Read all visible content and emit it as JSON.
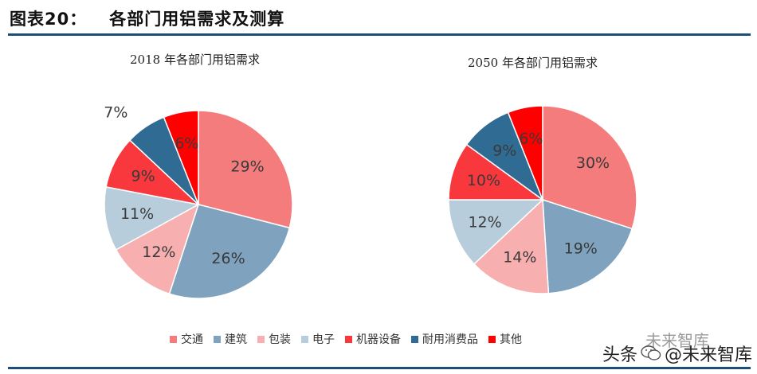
{
  "figure": {
    "label": "图表20：",
    "title": "各部门用铝需求及测算"
  },
  "colors": {
    "交通": "#F47C7C",
    "建筑": "#7FA3BF",
    "包装": "#F8AFAF",
    "电子": "#B8CDDC",
    "机器设备": "#F8383C",
    "耐用消费品": "#2F6B92",
    "其他": "#FF0000",
    "rule": "#1F4E79"
  },
  "chart_data": [
    {
      "type": "pie",
      "title": "2018 年各部门用铝需求",
      "categories": [
        "交通",
        "建筑",
        "包装",
        "电子",
        "机器设备",
        "耐用消费品",
        "其他"
      ],
      "values": [
        29,
        26,
        12,
        11,
        9,
        7,
        6
      ],
      "labels": [
        "29%",
        "26%",
        "12%",
        "11%",
        "9%",
        "7%",
        "6%"
      ]
    },
    {
      "type": "pie",
      "title": "2050 年各部门用铝需求",
      "categories": [
        "交通",
        "建筑",
        "包装",
        "电子",
        "机器设备",
        "耐用消费品",
        "其他"
      ],
      "values": [
        30,
        19,
        14,
        12,
        10,
        9,
        6
      ],
      "labels": [
        "30%",
        "19%",
        "14%",
        "12%",
        "10%",
        "9%",
        "6%"
      ]
    }
  ],
  "legend": [
    "交通",
    "建筑",
    "包装",
    "电子",
    "机器设备",
    "耐用消费品",
    "其他"
  ],
  "watermark": {
    "prefix": "头条",
    "brand": "@未来智库",
    "ghost": "未来智库"
  }
}
